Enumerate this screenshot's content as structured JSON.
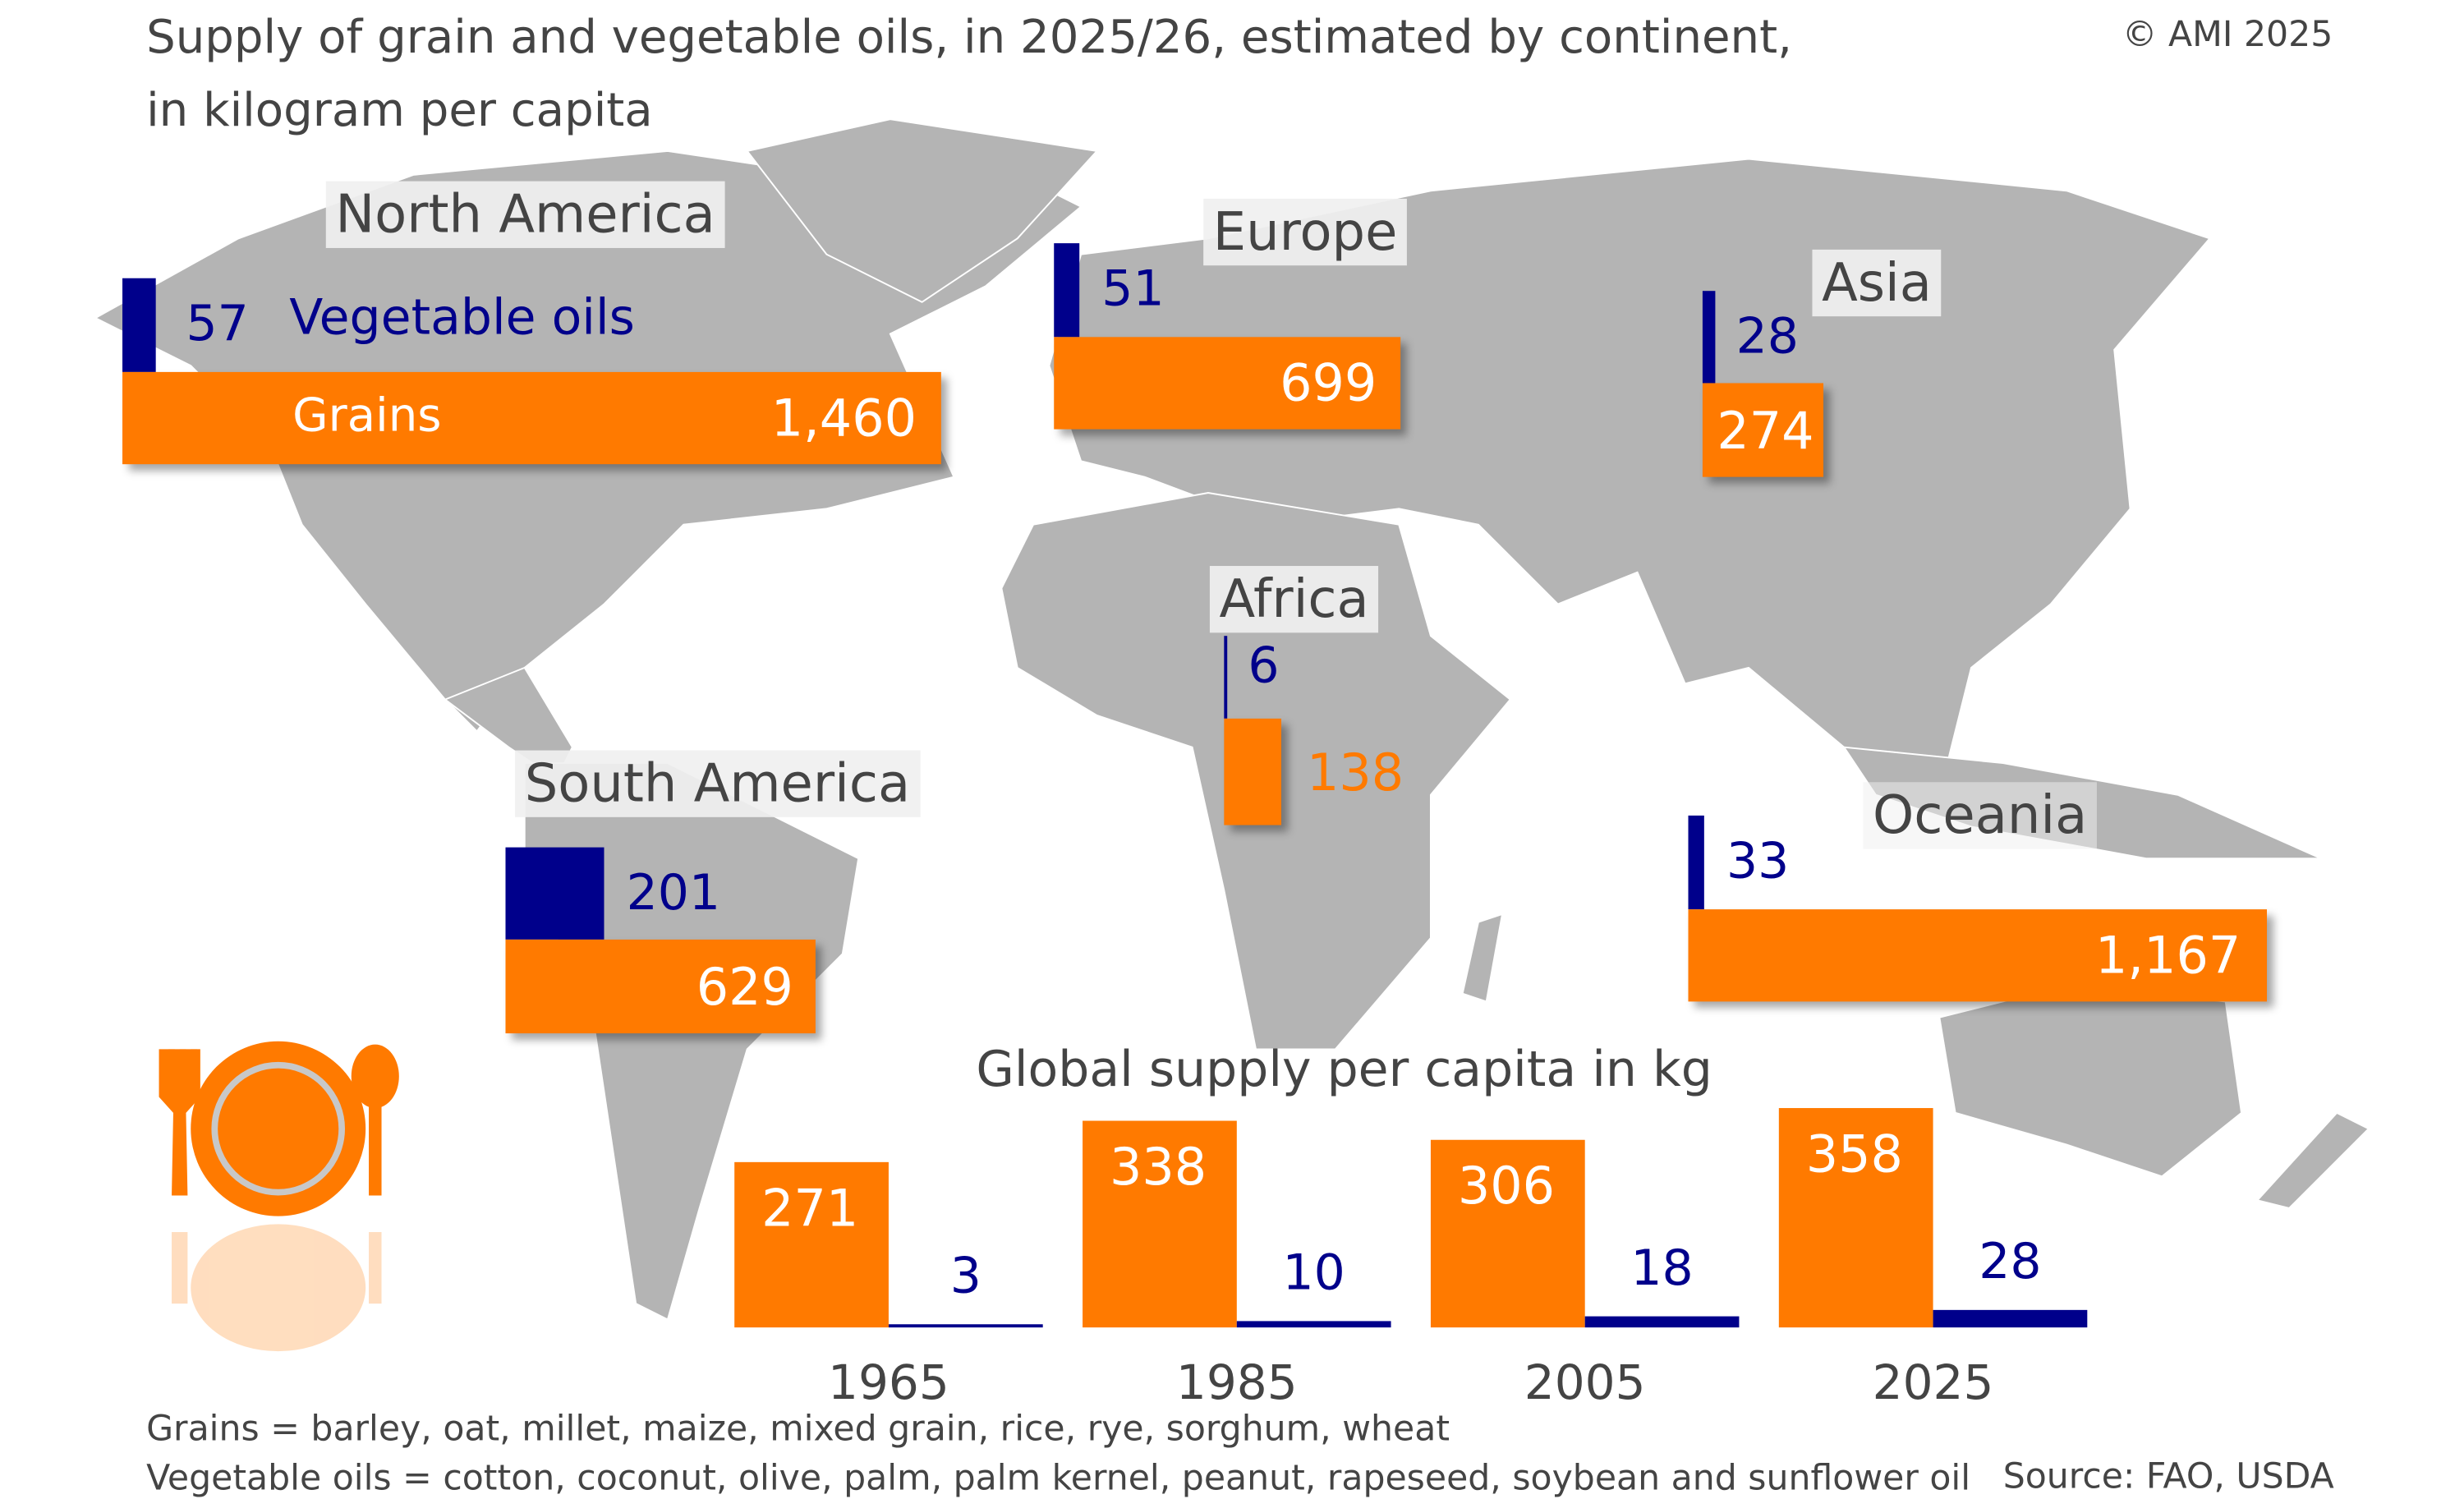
{
  "header": {
    "title_line1": "Supply of grain and vegetable oils, in 2025/26, estimated by continent,",
    "title_line2": "in kilogram per capita",
    "copyright": "© AMI 2025"
  },
  "colors": {
    "grains": "#ff7a00",
    "vegetable_oils": "#00008b",
    "map": "#b4b4b4"
  },
  "chart_data": [
    {
      "type": "bar",
      "title": "Supply of grain and vegetable oils, in 2025/26, estimated by continent, in kilogram per capita",
      "series_labels": {
        "grains": "Grains",
        "oils": "Vegetable oils"
      },
      "continents": [
        {
          "name": "North America",
          "grains": "1,460",
          "oils": "57"
        },
        {
          "name": "Europe",
          "grains": "699",
          "oils": "51"
        },
        {
          "name": "Asia",
          "grains": "274",
          "oils": "28"
        },
        {
          "name": "Africa",
          "grains": "138",
          "oils": "6"
        },
        {
          "name": "South America",
          "grains": "629",
          "oils": "201"
        },
        {
          "name": "Oceania",
          "grains": "1,167",
          "oils": "33"
        }
      ]
    },
    {
      "type": "bar",
      "title": "Global supply per capita in kg",
      "categories": [
        "1965",
        "1985",
        "2005",
        "2025"
      ],
      "series": [
        {
          "name": "Grains",
          "values": [
            271,
            338,
            306,
            358
          ]
        },
        {
          "name": "Vegetable oils",
          "values": [
            3,
            10,
            18,
            28
          ]
        }
      ]
    }
  ],
  "footer": {
    "grains_note": "Grains = barley, oat, millet, maize, mixed grain, rice, rye, sorghum, wheat",
    "oils_note": "Vegetable oils = cotton, coconut, olive, palm, palm kernel, peanut, rapeseed, soybean and sunflower oil",
    "source": "Source: FAO, USDA"
  }
}
